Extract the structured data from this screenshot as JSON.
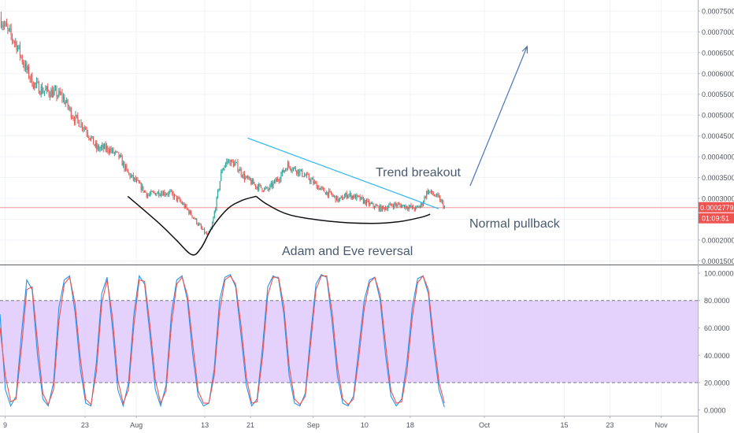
{
  "chart_data": [
    {
      "type": "candlestick",
      "title": "",
      "y_ticks": [
        "0.0007500",
        "0.0007000",
        "0.0006500",
        "0.0006000",
        "0.0005500",
        "0.0005000",
        "0.0004500",
        "0.0004000",
        "0.0003500",
        "0.0003000",
        "0.0002500",
        "0.0002000",
        "0.0001500"
      ],
      "ylim": [
        0.000145,
        0.000765
      ],
      "x_ticks": [
        {
          "label": "9",
          "day": 9
        },
        {
          "label": "23",
          "day": 23
        },
        {
          "label": "Aug",
          "day": 32
        },
        {
          "label": "13",
          "day": 44
        },
        {
          "label": "21",
          "day": 52
        },
        {
          "label": "Sep",
          "day": 63
        },
        {
          "label": "10",
          "day": 72
        },
        {
          "label": "18",
          "day": 80
        },
        {
          "label": "Oct",
          "day": 93
        },
        {
          "label": "15",
          "day": 107
        },
        {
          "label": "23",
          "day": 115
        },
        {
          "label": "Nov",
          "day": 124
        }
      ],
      "xlim": [
        8.1,
        130.4
      ],
      "last_price_label": "0.0002779",
      "last_price": 0.0002779,
      "countdown_label": "01:09:51",
      "price_path": [
        [
          8.1,
          0.000735
        ],
        [
          9.5,
          0.0007
        ],
        [
          11,
          0.00067
        ],
        [
          12.5,
          0.000615
        ],
        [
          14,
          0.000575
        ],
        [
          15.5,
          0.00056
        ],
        [
          17,
          0.000555
        ],
        [
          19,
          0.000545
        ],
        [
          21,
          0.000495
        ],
        [
          23,
          0.00047
        ],
        [
          25,
          0.00042
        ],
        [
          27,
          0.00042
        ],
        [
          29,
          0.0004
        ],
        [
          30.5,
          0.00036
        ],
        [
          32,
          0.00034
        ],
        [
          34,
          0.000308
        ],
        [
          36,
          0.000315
        ],
        [
          38,
          0.000312
        ],
        [
          40,
          0.000288
        ],
        [
          42,
          0.000255
        ],
        [
          43.5,
          0.000225
        ],
        [
          44.5,
          0.00021
        ],
        [
          45.2,
          0.00023
        ],
        [
          46,
          0.00029
        ],
        [
          47,
          0.00037
        ],
        [
          48,
          0.00039
        ],
        [
          49.5,
          0.00038
        ],
        [
          51,
          0.00035
        ],
        [
          53,
          0.00033
        ],
        [
          55,
          0.00032
        ],
        [
          57,
          0.00035
        ],
        [
          58.5,
          0.00038
        ],
        [
          60.5,
          0.000365
        ],
        [
          62.5,
          0.000345
        ],
        [
          64.5,
          0.00032
        ],
        [
          66,
          0.00031
        ],
        [
          67.5,
          0.000295
        ],
        [
          69,
          0.00031
        ],
        [
          71,
          0.0003
        ],
        [
          73,
          0.000285
        ],
        [
          75,
          0.000275
        ],
        [
          77,
          0.000285
        ],
        [
          79,
          0.000282
        ],
        [
          81,
          0.000275
        ],
        [
          82,
          0.000285
        ],
        [
          83,
          0.000318
        ],
        [
          84,
          0.00031
        ],
        [
          85,
          0.0003
        ],
        [
          86,
          0.00028
        ]
      ],
      "annotations": [
        {
          "text": "Trend breakout"
        },
        {
          "text": "Normal pullback"
        },
        {
          "text": "Adam and Eve reversal"
        }
      ],
      "drawings": {
        "trendline": [
          [
            51.5,
            0.000445
          ],
          [
            85,
            0.000275
          ]
        ],
        "arrow": [
          [
            90.5,
            0.00033
          ],
          [
            100.5,
            0.000665
          ]
        ],
        "adam": [
          [
            30.5,
            0.000305
          ],
          [
            36,
            0.00024
          ],
          [
            39,
            0.0002
          ],
          [
            41.7,
            0.000165
          ],
          [
            43.3,
            0.00018
          ],
          [
            45.3,
            0.00023
          ],
          [
            48,
            0.000275
          ],
          [
            50.5,
            0.000295
          ],
          [
            53,
            0.000305
          ]
        ],
        "eve": [
          [
            53,
            0.000305
          ],
          [
            55,
            0.000285
          ],
          [
            59,
            0.00026
          ],
          [
            66,
            0.000245
          ],
          [
            73,
            0.00024
          ],
          [
            78,
            0.000244
          ],
          [
            82,
            0.000255
          ],
          [
            83.5,
            0.000262
          ]
        ]
      }
    },
    {
      "type": "line",
      "indicator": "stochastic",
      "y_ticks": [
        "100.0000",
        "80.0000",
        "60.0000",
        "40.0000",
        "20.0000",
        "0.0000"
      ],
      "ylim": [
        -3,
        104
      ],
      "band": [
        20,
        80
      ],
      "series": [
        {
          "color": "#2196f3",
          "values": [
            70,
            15,
            3,
            10,
            55,
            95,
            88,
            40,
            8,
            3,
            20,
            75,
            95,
            98,
            72,
            30,
            5,
            3,
            35,
            85,
            97,
            60,
            15,
            3,
            20,
            70,
            98,
            92,
            55,
            15,
            3,
            18,
            70,
            95,
            98,
            80,
            40,
            10,
            3,
            5,
            30,
            80,
            97,
            99,
            90,
            55,
            18,
            3,
            8,
            45,
            90,
            98,
            96,
            70,
            25,
            5,
            3,
            12,
            55,
            92,
            99,
            97,
            65,
            25,
            5,
            3,
            10,
            45,
            80,
            95,
            97,
            80,
            40,
            10,
            3,
            8,
            35,
            75,
            96,
            98,
            85,
            45,
            15,
            2
          ]
        },
        {
          "color": "#ef5350",
          "values": [
            60,
            25,
            6,
            8,
            45,
            88,
            90,
            50,
            12,
            4,
            15,
            65,
            92,
            97,
            78,
            38,
            8,
            4,
            28,
            78,
            95,
            68,
            22,
            5,
            15,
            62,
            95,
            94,
            62,
            22,
            5,
            14,
            62,
            92,
            97,
            84,
            48,
            14,
            5,
            5,
            25,
            72,
            95,
            98,
            92,
            62,
            24,
            5,
            6,
            38,
            84,
            97,
            97,
            76,
            32,
            8,
            4,
            10,
            48,
            88,
            98,
            98,
            72,
            32,
            8,
            4,
            8,
            38,
            74,
            93,
            97,
            84,
            48,
            14,
            5,
            6,
            28,
            68,
            93,
            98,
            88,
            52,
            20,
            5
          ]
        }
      ]
    }
  ]
}
